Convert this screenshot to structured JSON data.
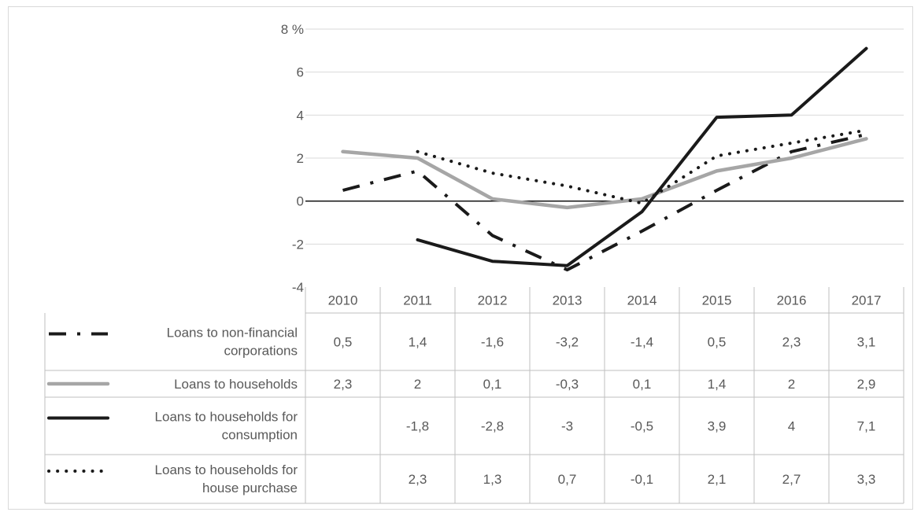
{
  "chart_data": {
    "type": "line",
    "title": "",
    "y_unit_label": "%",
    "ylim": [
      -4,
      8
    ],
    "yticks": [
      -4,
      -2,
      0,
      2,
      4,
      6,
      8
    ],
    "grid": true,
    "legend": "data-table-left",
    "categories": [
      "2010",
      "2011",
      "2012",
      "2013",
      "2014",
      "2015",
      "2016",
      "2017"
    ],
    "series": [
      {
        "name": "Loans to non-financial corporations",
        "name_lines": [
          "Loans to non-financial",
          "corporations"
        ],
        "style": "dash-dot",
        "color": "#1a1a1a",
        "values": [
          0.5,
          1.4,
          -1.6,
          -3.2,
          -1.4,
          0.5,
          2.3,
          3.1
        ],
        "labels": [
          "0,5",
          "1,4",
          "-1,6",
          "-3,2",
          "-1,4",
          "0,5",
          "2,3",
          "3,1"
        ]
      },
      {
        "name": "Loans to households",
        "name_lines": [
          "Loans to households"
        ],
        "style": "solid-thick",
        "color": "#a6a6a6",
        "values": [
          2.3,
          2,
          0.1,
          -0.3,
          0.1,
          1.4,
          2,
          2.9
        ],
        "labels": [
          "2,3",
          "2",
          "0,1",
          "-0,3",
          "0,1",
          "1,4",
          "2",
          "2,9"
        ]
      },
      {
        "name": "Loans to households for consumption",
        "name_lines": [
          "Loans to households for",
          "consumption"
        ],
        "style": "solid",
        "color": "#1a1a1a",
        "values": [
          null,
          -1.8,
          -2.8,
          -3,
          -0.5,
          3.9,
          4,
          7.1
        ],
        "labels": [
          "",
          "-1,8",
          "-2,8",
          "-3",
          "-0,5",
          "3,9",
          "4",
          "7,1"
        ]
      },
      {
        "name": "Loans to households for house purchase",
        "name_lines": [
          "Loans to households for",
          "house purchase"
        ],
        "style": "dotted",
        "color": "#1a1a1a",
        "values": [
          null,
          2.3,
          1.3,
          0.7,
          -0.1,
          2.1,
          2.7,
          3.3
        ],
        "labels": [
          "",
          "2,3",
          "1,3",
          "0,7",
          "-0,1",
          "2,1",
          "2,7",
          "3,3"
        ]
      }
    ]
  }
}
